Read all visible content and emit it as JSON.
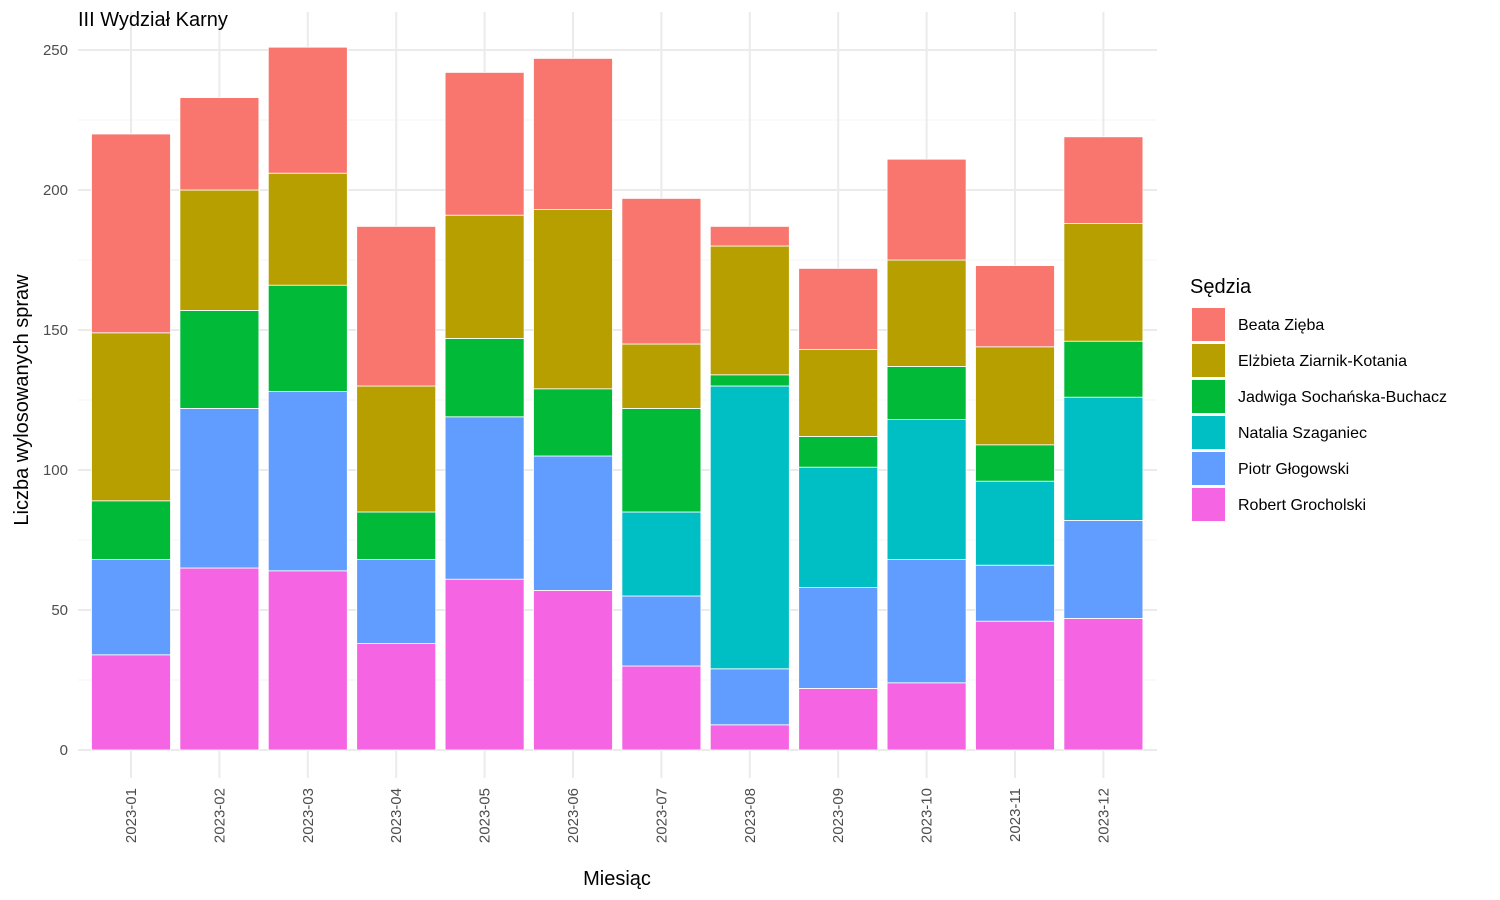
{
  "chart_data": {
    "type": "bar",
    "stacked": true,
    "title": "III Wydział Karny",
    "xlabel": "Miesiąc",
    "ylabel": "Liczba wylosowanych spraw",
    "ylim": [
      0,
      250
    ],
    "yticks": [
      0,
      50,
      100,
      150,
      200,
      250
    ],
    "grid": true,
    "legend_position": "right",
    "legend_title": "Sędzia",
    "categories": [
      "2023-01",
      "2023-02",
      "2023-03",
      "2023-04",
      "2023-05",
      "2023-06",
      "2023-07",
      "2023-08",
      "2023-09",
      "2023-10",
      "2023-11",
      "2023-12"
    ],
    "series": [
      {
        "name": "Robert Grocholski",
        "color": "#F564E3",
        "values": [
          34,
          65,
          64,
          38,
          61,
          57,
          30,
          9,
          22,
          24,
          46,
          47
        ]
      },
      {
        "name": "Piotr Głogowski",
        "color": "#619CFF",
        "values": [
          34,
          57,
          64,
          30,
          58,
          48,
          25,
          20,
          36,
          44,
          20,
          35
        ]
      },
      {
        "name": "Natalia Szaganiec",
        "color": "#00BFC4",
        "values": [
          0,
          0,
          0,
          0,
          0,
          0,
          30,
          101,
          43,
          50,
          30,
          44
        ]
      },
      {
        "name": "Jadwiga Sochańska-Buchacz",
        "color": "#00BA38",
        "values": [
          21,
          35,
          38,
          17,
          28,
          24,
          37,
          4,
          11,
          19,
          13,
          20
        ]
      },
      {
        "name": "Elżbieta Ziarnik-Kotania",
        "color": "#B79F00",
        "values": [
          60,
          43,
          40,
          45,
          44,
          64,
          23,
          46,
          31,
          38,
          35,
          42
        ]
      },
      {
        "name": "Beata Zięba",
        "color": "#F8766D",
        "values": [
          71,
          33,
          45,
          57,
          51,
          54,
          52,
          7,
          29,
          36,
          29,
          31
        ]
      }
    ],
    "legend_order": [
      "Beata Zięba",
      "Elżbieta Ziarnik-Kotania",
      "Jadwiga Sochańska-Buchacz",
      "Natalia Szaganiec",
      "Piotr Głogowski",
      "Robert Grocholski"
    ]
  }
}
